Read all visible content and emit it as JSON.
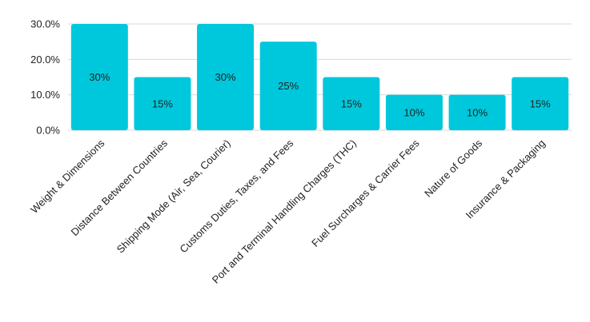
{
  "chart_data": {
    "type": "bar",
    "categories": [
      "Weight & Dimensions",
      "Distance Between Countries",
      "Shipping Mode (Air, Sea, Courier)",
      "Customs Duties, Taxes, and Fees",
      "Port and Terminal Handling Charges (THC)",
      "Fuel Surcharges & Carrier Fees",
      "Nature of Goods",
      "Insurance & Packaging"
    ],
    "values": [
      30,
      15,
      30,
      25,
      15,
      10,
      10,
      15
    ],
    "data_labels": [
      "30%",
      "15%",
      "30%",
      "25%",
      "15%",
      "10%",
      "10%",
      "15%"
    ],
    "y_ticks": [
      0,
      10,
      20,
      30
    ],
    "y_tick_labels": [
      "0.0%",
      "10.0%",
      "20.0%",
      "30.0%"
    ],
    "ylim": [
      0,
      30
    ],
    "grid": true,
    "legend": "none",
    "bar_color": "#00c8dc"
  }
}
